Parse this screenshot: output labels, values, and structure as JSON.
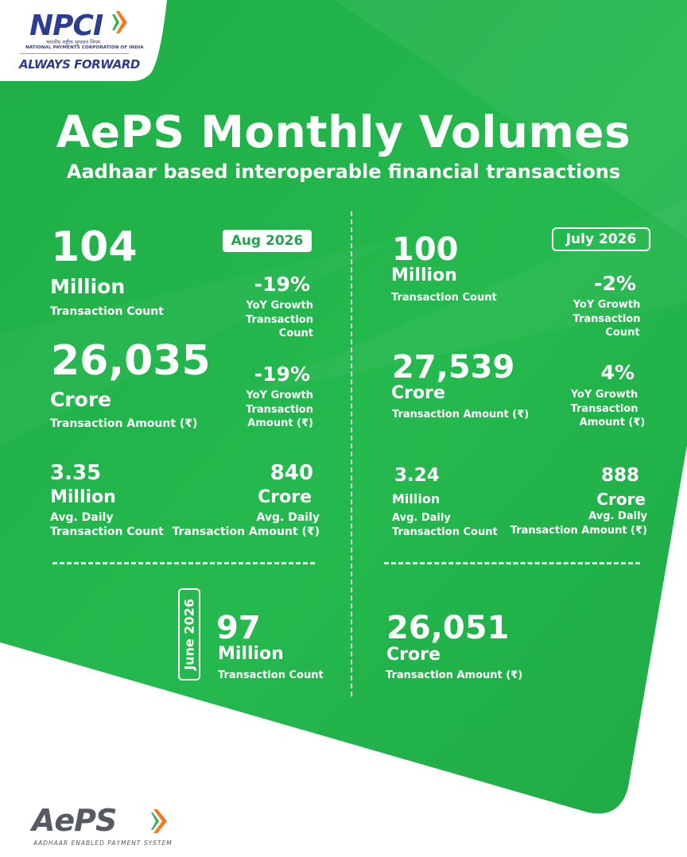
{
  "brand": {
    "name": "NPCI",
    "hindi_line": "भारतीय राष्ट्रीय भुगतान निगम",
    "english_line": "NATIONAL PAYMENTS CORPORATION OF INDIA",
    "tagline": "ALWAYS FORWARD",
    "accent_orange": "#f47920",
    "accent_green": "#2bb24c",
    "accent_navy": "#2d3e8f"
  },
  "header": {
    "title": "AePS Monthly Volumes",
    "subtitle": "Aadhaar based interoperable financial transactions"
  },
  "august": {
    "badge": "Aug 2026",
    "count_value": "104",
    "count_unit": "Million",
    "count_label": "Transaction Count",
    "count_yoy": "-19%",
    "count_yoy_label": [
      "YoY Growth",
      "Transaction",
      "Count"
    ],
    "amount_value": "26,035",
    "amount_unit": "Crore",
    "amount_label": "Transaction Amount (₹)",
    "amount_yoy": "-19%",
    "amount_yoy_label": [
      "YoY Growth",
      "Transaction",
      "Amount (₹)"
    ],
    "daily_count_value": "3.35",
    "daily_count_unit": "Million",
    "daily_count_label": [
      "Avg. Daily",
      "Transaction Count"
    ],
    "daily_amount_value": "840",
    "daily_amount_unit": "Crore",
    "daily_amount_label": [
      "Avg. Daily",
      "Transaction Amount (₹)"
    ]
  },
  "july": {
    "badge": "July 2026",
    "count_value": "100",
    "count_unit": "Million",
    "count_label": "Transaction Count",
    "count_yoy": "-2%",
    "count_yoy_label": [
      "YoY Growth",
      "Transaction",
      "Count"
    ],
    "amount_value": "27,539",
    "amount_unit": "Crore",
    "amount_label": "Transaction Amount (₹)",
    "amount_yoy": "4%",
    "amount_yoy_label": [
      "YoY Growth",
      "Transaction",
      "Amount (₹)"
    ],
    "daily_count_value": "3.24",
    "daily_count_unit": "Million",
    "daily_count_label": [
      "Avg. Daily",
      "Transaction Count"
    ],
    "daily_amount_value": "888",
    "daily_amount_unit": "Crore",
    "daily_amount_label": [
      "Avg. Daily",
      "Transaction Amount (₹)"
    ]
  },
  "june": {
    "badge": "June 2026",
    "count_value": "97",
    "count_unit": "Million",
    "count_label": "Transaction Count",
    "amount_value": "26,051",
    "amount_unit": "Crore",
    "amount_label": "Transaction Amount (₹)"
  },
  "footer": {
    "logo_text": "AePS",
    "logo_sub": "AADHAAR ENABLED PAYMENT SYSTEM"
  }
}
